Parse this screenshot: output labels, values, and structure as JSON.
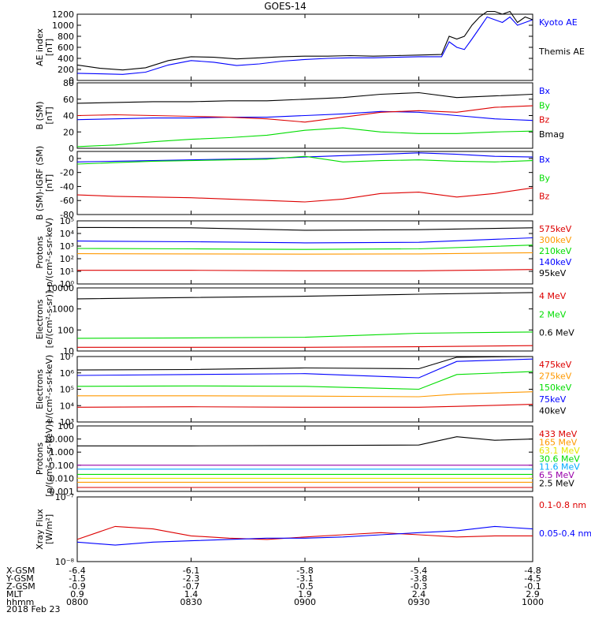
{
  "page_title": "GOES-14",
  "date_label": "2018 Feb 23",
  "colors": {
    "black": "#000000",
    "blue": "#0000ff",
    "green": "#00dd00",
    "red": "#dd0000",
    "orange": "#ff9900",
    "yellow": "#e6e600",
    "cyan": "#00aaff",
    "purple": "#9900aa"
  },
  "ephemeris": {
    "labels": [
      "X-GSM",
      "Y-GSM",
      "Z-GSM",
      "MLT",
      "hhmm"
    ],
    "columns": [
      [
        "-6.4",
        "-1.5",
        "-0.9",
        "0.9",
        "0800"
      ],
      [
        "-6.1",
        "-2.3",
        "-0.7",
        "1.4",
        "0830"
      ],
      [
        "-5.8",
        "-3.1",
        "-0.5",
        "1.9",
        "0900"
      ],
      [
        "-5.4",
        "-3.8",
        "-0.3",
        "2.4",
        "0930"
      ],
      [
        "-4.8",
        "-4.5",
        "-0.1",
        "2.9",
        "1000"
      ]
    ]
  },
  "chart_data": [
    {
      "type": "line",
      "id": "ae",
      "ylabel": [
        "AE index",
        "[nT]"
      ],
      "ylim": [
        0,
        1200
      ],
      "yticks": [
        "0",
        "200",
        "400",
        "600",
        "800",
        "1000",
        "1200"
      ],
      "xlim": [
        0,
        120
      ],
      "series": [
        {
          "name": "Kyoto AE",
          "color": "#0000ff",
          "x": [
            0,
            6,
            12,
            18,
            24,
            30,
            36,
            42,
            48,
            54,
            60,
            66,
            72,
            78,
            84,
            90,
            96,
            98,
            100,
            102,
            104,
            106,
            108,
            110,
            112,
            114,
            116,
            118,
            120
          ],
          "y": [
            130,
            120,
            110,
            150,
            280,
            360,
            330,
            270,
            300,
            350,
            380,
            400,
            410,
            410,
            420,
            430,
            430,
            700,
            600,
            560,
            750,
            950,
            1150,
            1100,
            1050,
            1150,
            1000,
            1050,
            1100
          ]
        },
        {
          "name": "Themis AE",
          "color": "#000000",
          "x": [
            0,
            6,
            12,
            18,
            24,
            30,
            36,
            42,
            48,
            54,
            60,
            66,
            72,
            78,
            84,
            90,
            96,
            98,
            100,
            102,
            104,
            106,
            108,
            110,
            112,
            114,
            116,
            118,
            120
          ],
          "y": [
            280,
            220,
            190,
            230,
            360,
            430,
            420,
            390,
            410,
            430,
            440,
            440,
            450,
            440,
            450,
            460,
            470,
            800,
            750,
            800,
            1000,
            1150,
            1250,
            1250,
            1200,
            1250,
            1050,
            1150,
            1100
          ]
        }
      ]
    },
    {
      "type": "line",
      "id": "bsm",
      "ylabel": [
        "B (SM)",
        "[nT]"
      ],
      "ylim": [
        0,
        80
      ],
      "yticks": [
        "0",
        "20",
        "40",
        "60",
        "80"
      ],
      "xlim": [
        0,
        120
      ],
      "series": [
        {
          "name": "Bx",
          "color": "#0000ff",
          "x": [
            0,
            10,
            20,
            30,
            40,
            50,
            60,
            70,
            80,
            90,
            100,
            110,
            120
          ],
          "y": [
            35,
            36,
            37,
            37,
            38,
            38,
            40,
            42,
            45,
            44,
            40,
            36,
            34
          ]
        },
        {
          "name": "By",
          "color": "#00dd00",
          "x": [
            0,
            10,
            20,
            30,
            40,
            50,
            60,
            70,
            80,
            90,
            100,
            110,
            120
          ],
          "y": [
            2,
            4,
            8,
            11,
            13,
            16,
            22,
            25,
            20,
            18,
            18,
            20,
            21
          ]
        },
        {
          "name": "Bz",
          "color": "#dd0000",
          "x": [
            0,
            10,
            20,
            30,
            40,
            50,
            60,
            70,
            80,
            90,
            100,
            110,
            120
          ],
          "y": [
            40,
            41,
            40,
            39,
            38,
            36,
            32,
            38,
            44,
            46,
            44,
            50,
            52
          ]
        },
        {
          "name": "Bmag",
          "color": "#000000",
          "x": [
            0,
            10,
            20,
            30,
            40,
            50,
            60,
            70,
            80,
            90,
            100,
            110,
            120
          ],
          "y": [
            55,
            56,
            57,
            57,
            58,
            58,
            60,
            62,
            66,
            68,
            62,
            64,
            66
          ]
        }
      ]
    },
    {
      "type": "line",
      "id": "digrf",
      "ylabel": [
        "B (SM)-IGRF (SM)",
        "[nT]"
      ],
      "ylim": [
        -80,
        10
      ],
      "yticks": [
        "-80",
        "-60",
        "-40",
        "-20",
        "0"
      ],
      "ytick_values": [
        -80,
        -60,
        -40,
        -20,
        0
      ],
      "xlim": [
        0,
        120
      ],
      "series": [
        {
          "name": "Bx",
          "color": "#0000ff",
          "x": [
            0,
            10,
            20,
            30,
            40,
            50,
            60,
            70,
            80,
            90,
            100,
            110,
            120
          ],
          "y": [
            -5,
            -4,
            -3,
            -2,
            -1,
            0,
            2,
            4,
            6,
            8,
            6,
            3,
            2
          ]
        },
        {
          "name": "By",
          "color": "#00dd00",
          "x": [
            0,
            10,
            20,
            30,
            40,
            50,
            60,
            70,
            80,
            90,
            100,
            110,
            120
          ],
          "y": [
            -8,
            -6,
            -4,
            -3,
            -2,
            -1,
            3,
            -5,
            -3,
            -2,
            -4,
            -5,
            -3
          ]
        },
        {
          "name": "Bz",
          "color": "#dd0000",
          "x": [
            0,
            10,
            20,
            30,
            40,
            50,
            60,
            70,
            80,
            90,
            100,
            110,
            120
          ],
          "y": [
            -52,
            -54,
            -55,
            -56,
            -58,
            -60,
            -62,
            -58,
            -50,
            -48,
            -55,
            -50,
            -42
          ]
        }
      ]
    },
    {
      "type": "line",
      "id": "protons_kev",
      "log": true,
      "ylabel": [
        "Protons",
        "p/(cm²-s-sr-keV)"
      ],
      "ylim": [
        1,
        100000
      ],
      "yticks": [
        "10⁰",
        "10¹",
        "10²",
        "10³",
        "10⁴",
        "10⁵"
      ],
      "ytick_values": [
        1,
        10,
        100,
        1000,
        10000,
        100000
      ],
      "xlim": [
        0,
        120
      ],
      "series": [
        {
          "name": "575keV",
          "color": "#dd0000",
          "x": [
            0,
            30,
            60,
            90,
            120
          ],
          "y": [
            12,
            12,
            11,
            11,
            14
          ]
        },
        {
          "name": "300keV",
          "color": "#ff9900",
          "x": [
            0,
            30,
            60,
            90,
            120
          ],
          "y": [
            250,
            240,
            230,
            240,
            300
          ]
        },
        {
          "name": "210keV",
          "color": "#00dd00",
          "x": [
            0,
            30,
            60,
            90,
            120
          ],
          "y": [
            650,
            600,
            550,
            600,
            1200
          ]
        },
        {
          "name": "140keV",
          "color": "#0000ff",
          "x": [
            0,
            30,
            60,
            90,
            120
          ],
          "y": [
            2500,
            2200,
            1800,
            2000,
            4500
          ]
        },
        {
          "name": "95keV",
          "color": "#000000",
          "x": [
            0,
            30,
            60,
            90,
            120
          ],
          "y": [
            30000,
            28000,
            18000,
            20000,
            28000
          ]
        }
      ]
    },
    {
      "type": "line",
      "id": "electrons_mev",
      "log": true,
      "ylabel": [
        "Electrons",
        "[e/(cm²-s-sr)]"
      ],
      "ylim": [
        10,
        10000
      ],
      "yticks": [
        "10",
        "100",
        "1000",
        "10000"
      ],
      "ytick_values": [
        10,
        100,
        1000,
        10000
      ],
      "xlim": [
        0,
        120
      ],
      "series": [
        {
          "name": "4 MeV",
          "color": "#dd0000",
          "x": [
            0,
            30,
            60,
            90,
            120
          ],
          "y": [
            15,
            15,
            15,
            16,
            18
          ]
        },
        {
          "name": "2 MeV",
          "color": "#00dd00",
          "x": [
            0,
            30,
            60,
            90,
            120
          ],
          "y": [
            40,
            42,
            45,
            70,
            80
          ]
        },
        {
          "name": "0.6 MeV",
          "color": "#000000",
          "x": [
            0,
            30,
            60,
            90,
            120
          ],
          "y": [
            3000,
            3500,
            4000,
            5000,
            6000
          ]
        }
      ]
    },
    {
      "type": "line",
      "id": "electrons_kev",
      "log": true,
      "ylabel": [
        "Electrons",
        "e/(cm²-s-sr-keV)"
      ],
      "ylim": [
        1000,
        10000000
      ],
      "yticks": [
        "10³",
        "10⁴",
        "10⁵",
        "10⁶",
        "10⁷"
      ],
      "ytick_values": [
        1000,
        10000,
        100000,
        1000000,
        10000000
      ],
      "xlim": [
        0,
        120
      ],
      "series": [
        {
          "name": "475keV",
          "color": "#dd0000",
          "x": [
            0,
            30,
            60,
            90,
            100,
            120
          ],
          "y": [
            8000,
            8500,
            8000,
            8000,
            9000,
            12000
          ]
        },
        {
          "name": "275keV",
          "color": "#ff9900",
          "x": [
            0,
            30,
            60,
            90,
            100,
            120
          ],
          "y": [
            40000,
            40000,
            38000,
            35000,
            50000,
            70000
          ]
        },
        {
          "name": "150keV",
          "color": "#00dd00",
          "x": [
            0,
            30,
            60,
            90,
            100,
            120
          ],
          "y": [
            150000,
            160000,
            150000,
            100000,
            800000,
            1200000
          ]
        },
        {
          "name": "75keV",
          "color": "#0000ff",
          "x": [
            0,
            30,
            60,
            90,
            100,
            120
          ],
          "y": [
            700000,
            800000,
            900000,
            500000,
            5000000,
            7000000
          ]
        },
        {
          "name": "40keV",
          "color": "#000000",
          "x": [
            0,
            30,
            60,
            90,
            100,
            120
          ],
          "y": [
            1500000,
            1600000,
            2000000,
            1800000,
            9000000,
            10000000
          ]
        }
      ]
    },
    {
      "type": "line",
      "id": "protons_mev",
      "log": true,
      "ylabel": [
        "Protons",
        "[p/(cm²-s-sr-keV)]"
      ],
      "ylim": [
        0.001,
        100
      ],
      "yticks": [
        "0.001",
        "0.010",
        "0.100",
        "1.000",
        "10.000",
        "100"
      ],
      "ytick_values": [
        0.001,
        0.01,
        0.1,
        1,
        10,
        100
      ],
      "xlim": [
        0,
        120
      ],
      "series": [
        {
          "name": "433 MeV",
          "color": "#dd0000",
          "x": [
            0,
            30,
            60,
            90,
            120
          ],
          "y": [
            0.002,
            0.002,
            0.002,
            0.002,
            0.002
          ]
        },
        {
          "name": "165 MeV",
          "color": "#ff9900",
          "x": [
            0,
            30,
            60,
            90,
            120
          ],
          "y": [
            0.005,
            0.005,
            0.005,
            0.005,
            0.005
          ]
        },
        {
          "name": "63.1 MeV",
          "color": "#e6e600",
          "x": [
            0,
            30,
            60,
            90,
            120
          ],
          "y": [
            0.01,
            0.01,
            0.01,
            0.01,
            0.01
          ]
        },
        {
          "name": "30.6 MeV",
          "color": "#00dd00",
          "x": [
            0,
            30,
            60,
            90,
            120
          ],
          "y": [
            0.02,
            0.02,
            0.02,
            0.02,
            0.02
          ]
        },
        {
          "name": "11.6 MeV",
          "color": "#00aaff",
          "x": [
            0,
            30,
            60,
            90,
            120
          ],
          "y": [
            0.05,
            0.05,
            0.05,
            0.05,
            0.05
          ]
        },
        {
          "name": "6.5 MeV",
          "color": "#9900aa",
          "x": [
            0,
            30,
            60,
            90,
            120
          ],
          "y": [
            0.1,
            0.1,
            0.1,
            0.1,
            0.1
          ]
        },
        {
          "name": "2.5 MeV",
          "color": "#000000",
          "x": [
            0,
            30,
            60,
            90,
            100,
            110,
            120
          ],
          "y": [
            3,
            3,
            3.2,
            3.5,
            15,
            8,
            10
          ]
        }
      ]
    },
    {
      "type": "line",
      "id": "xray",
      "log": true,
      "ylabel": [
        "Xray Flux",
        "[W/m²]"
      ],
      "ylim": [
        1e-08,
        1e-07
      ],
      "yticks": [
        "10⁻⁸",
        "10⁻⁷"
      ],
      "ytick_values": [
        1e-08,
        1e-07
      ],
      "xlim": [
        0,
        120
      ],
      "series": [
        {
          "name": "0.1-0.8 nm",
          "color": "#dd0000",
          "x": [
            0,
            10,
            20,
            30,
            40,
            50,
            60,
            70,
            80,
            90,
            100,
            110,
            120
          ],
          "y": [
            2.2e-08,
            3.5e-08,
            3.2e-08,
            2.5e-08,
            2.3e-08,
            2.2e-08,
            2.4e-08,
            2.6e-08,
            2.8e-08,
            2.6e-08,
            2.4e-08,
            2.5e-08,
            2.5e-08
          ]
        },
        {
          "name": "0.05-0.4 nm",
          "color": "#0000ff",
          "x": [
            0,
            10,
            20,
            30,
            40,
            50,
            60,
            70,
            80,
            90,
            100,
            110,
            120
          ],
          "y": [
            2e-08,
            1.8e-08,
            2e-08,
            2.1e-08,
            2.2e-08,
            2.3e-08,
            2.3e-08,
            2.4e-08,
            2.6e-08,
            2.8e-08,
            3e-08,
            3.5e-08,
            3.2e-08
          ]
        }
      ]
    }
  ]
}
